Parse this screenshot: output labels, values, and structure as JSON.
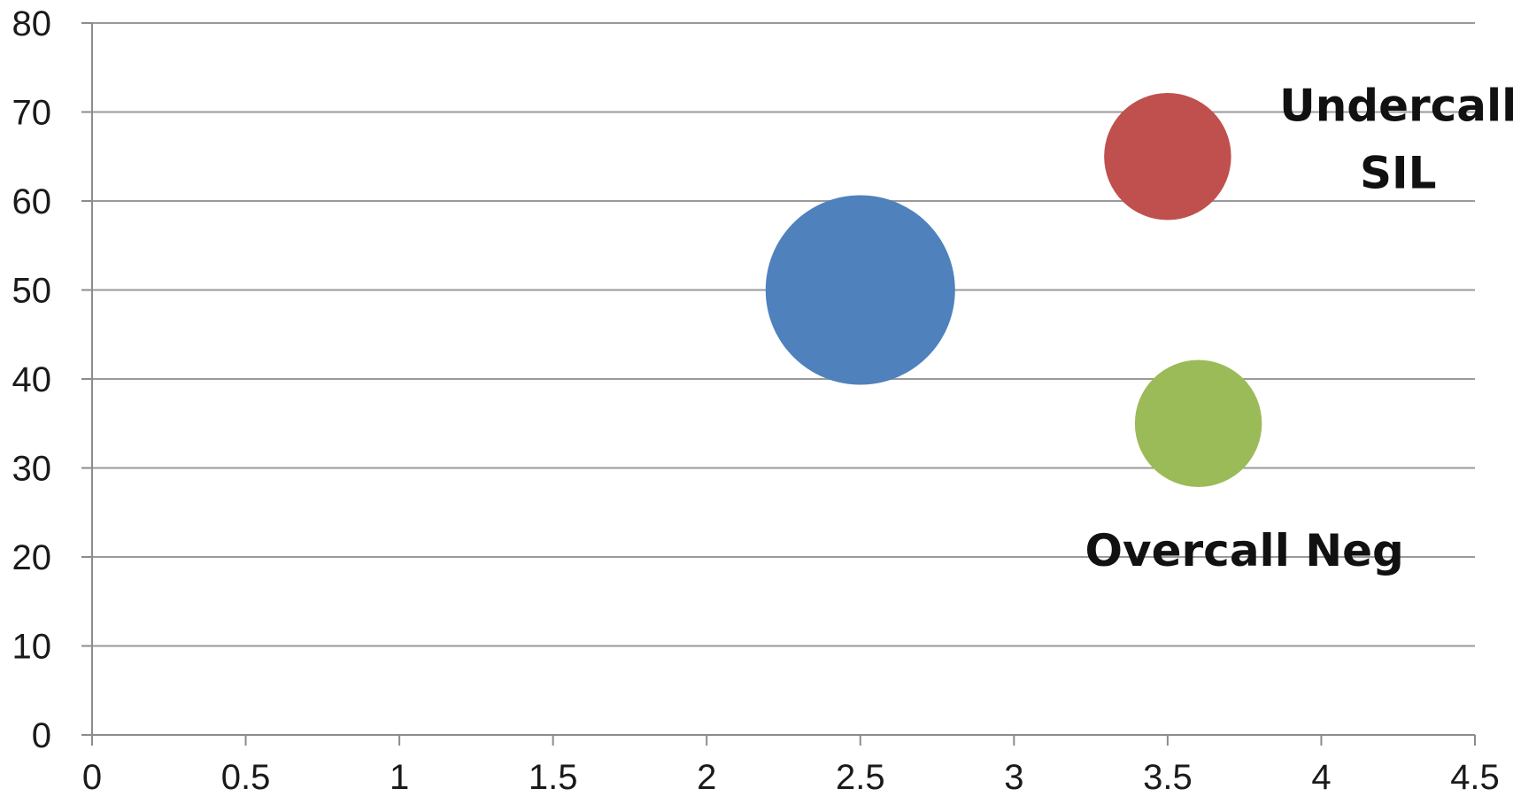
{
  "chart_data": {
    "type": "bubble",
    "xlim": [
      0,
      4.5
    ],
    "ylim": [
      0,
      80
    ],
    "x_ticks": [
      "0",
      "0.5",
      "1",
      "1.5",
      "2",
      "2.5",
      "3",
      "3.5",
      "4",
      "4.5"
    ],
    "y_ticks": [
      "0",
      "10",
      "20",
      "30",
      "40",
      "50",
      "60",
      "70",
      "80"
    ],
    "grid": true,
    "legend": "none",
    "series": [
      {
        "x": 2.5,
        "y": 50,
        "size": 2.5,
        "color": "#4f81bd"
      },
      {
        "x": 3.5,
        "y": 65,
        "size": 1,
        "color": "#c0504d"
      },
      {
        "x": 3.6,
        "y": 35,
        "size": 1,
        "color": "#9bbb59"
      }
    ],
    "annotations": [
      {
        "lines": [
          "Undercall",
          "SIL"
        ],
        "x": 4.25,
        "y": 69
      },
      {
        "lines": [
          "Overcall Neg"
        ],
        "x": 3.75,
        "y": 19
      }
    ]
  }
}
